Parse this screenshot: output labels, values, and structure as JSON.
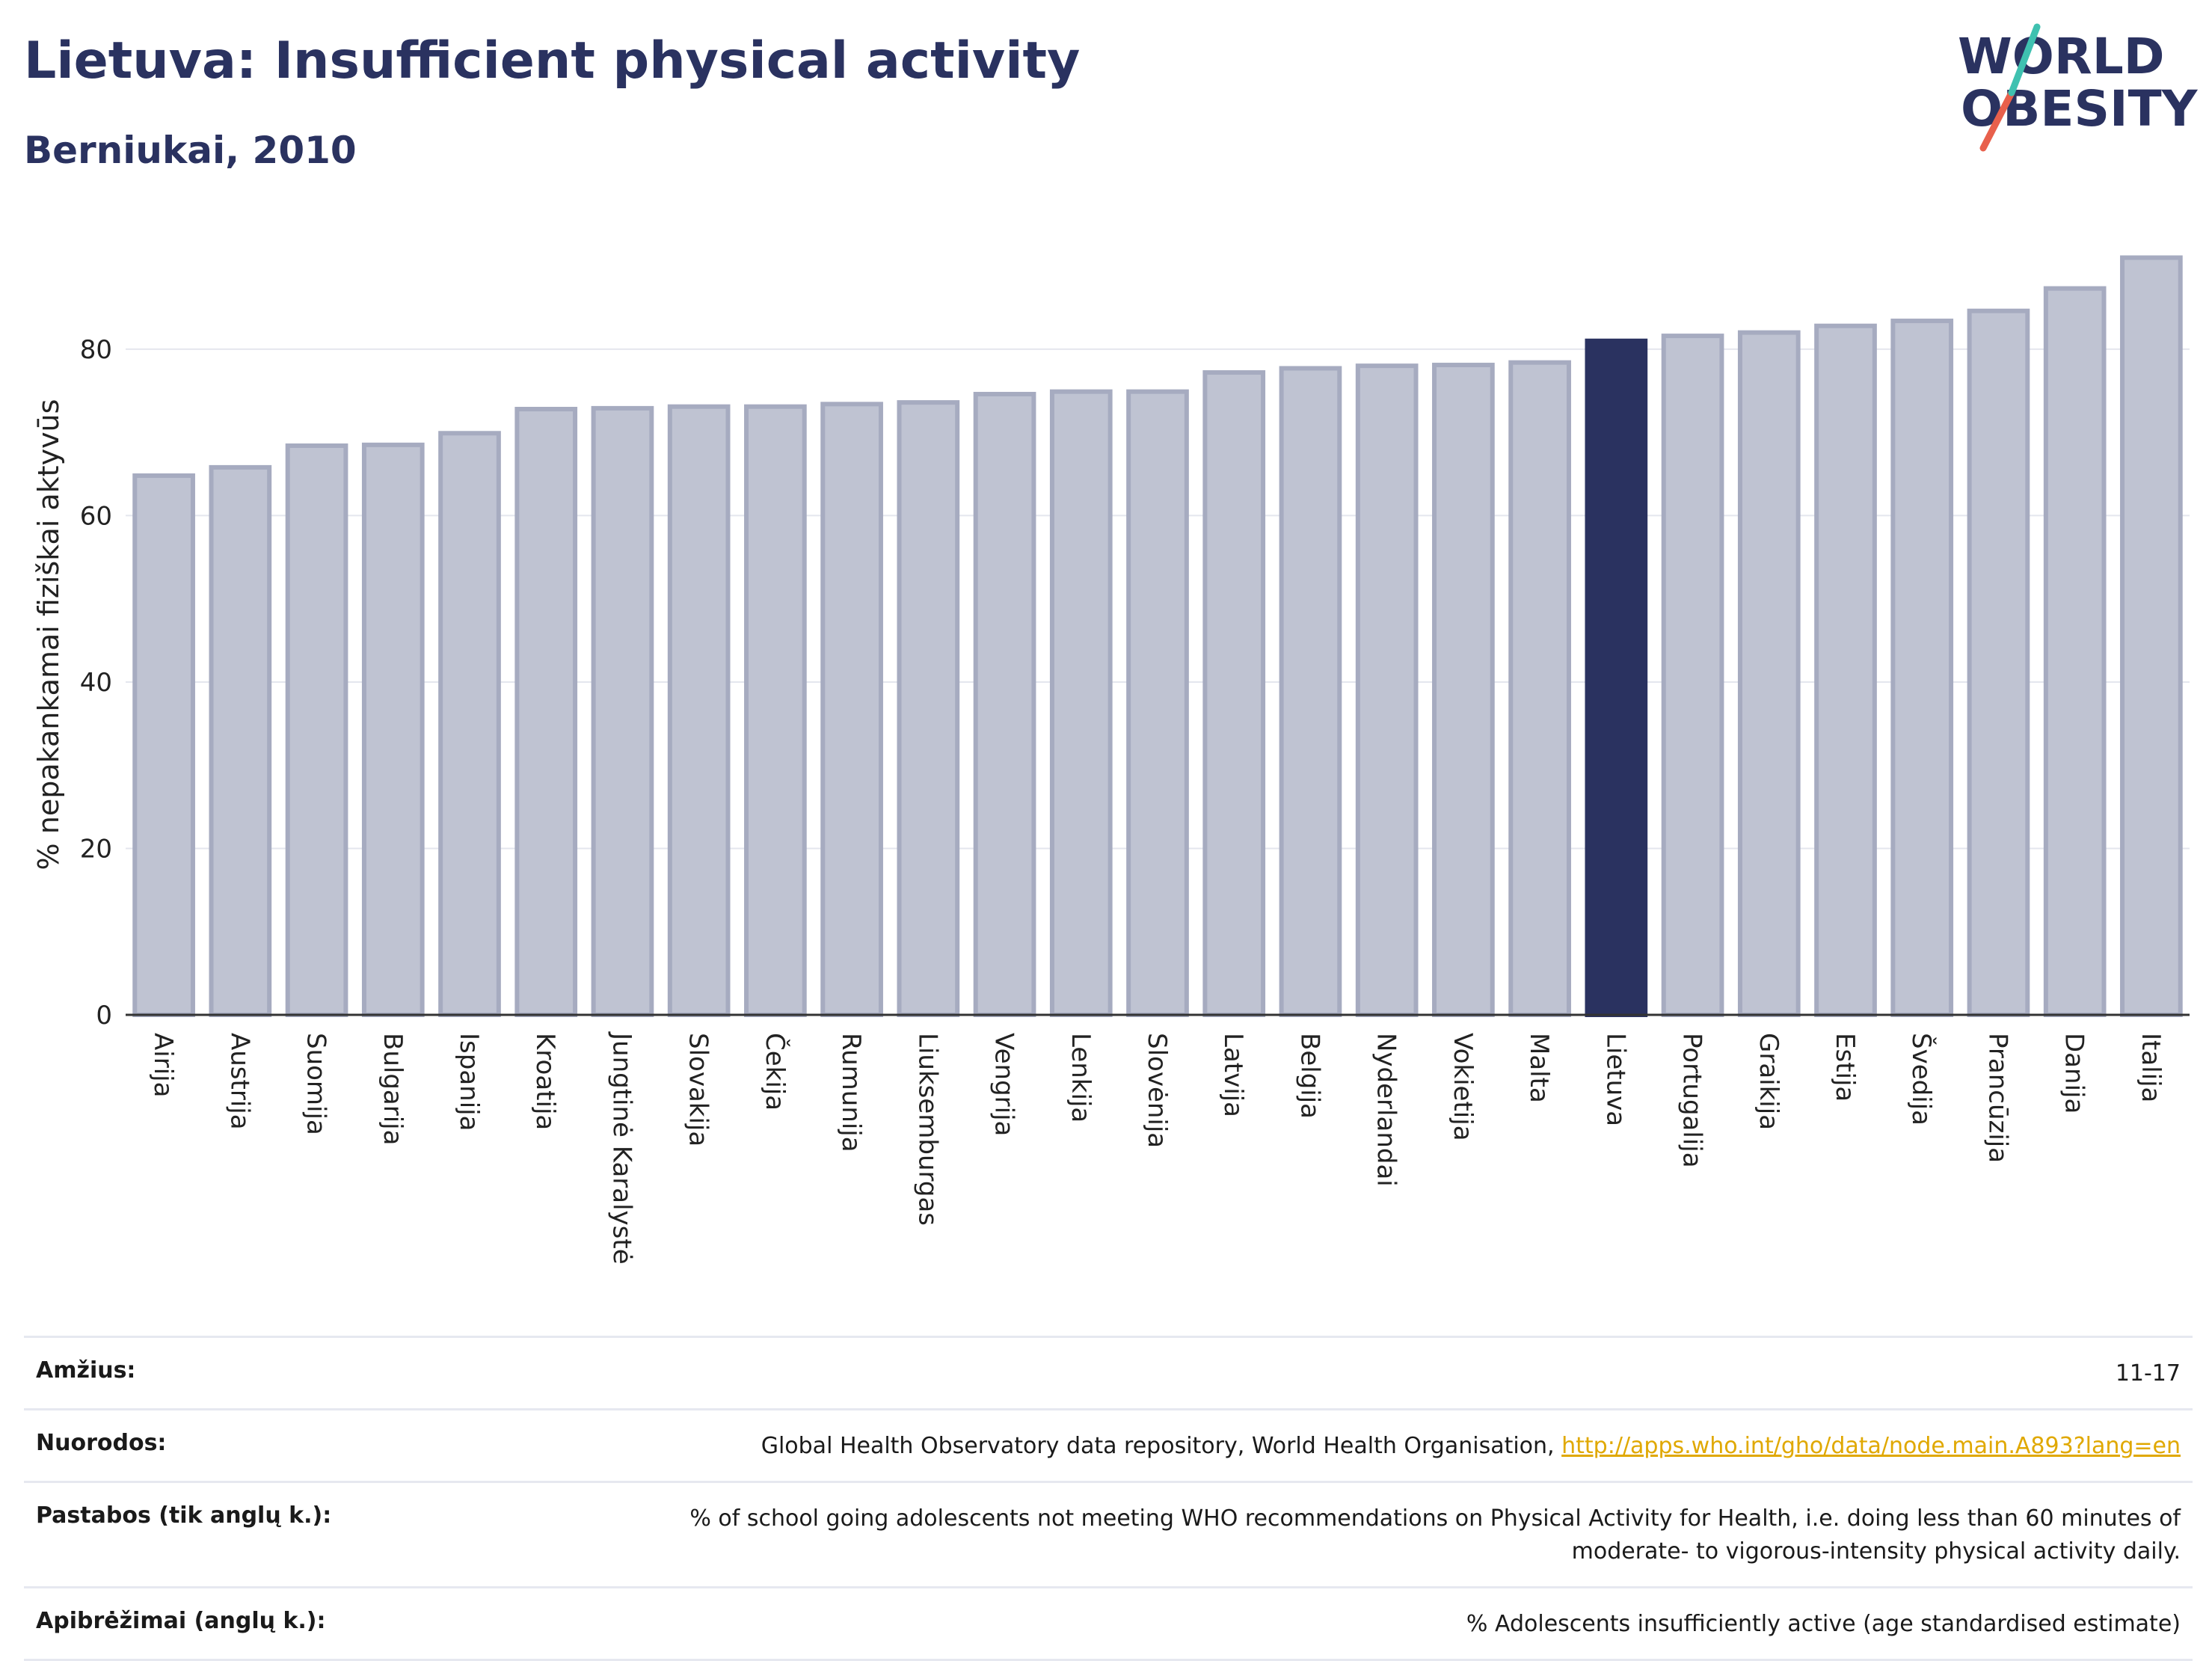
{
  "header": {
    "title": "Lietuva: Insufficient physical activity",
    "subtitle": "Berniukai, 2010"
  },
  "logo": {
    "line1": "WORLD",
    "line2": "OBESITY",
    "colors": {
      "text": "#2a3260",
      "slash_teal": "#3fc1b0",
      "slash_red": "#e8604c"
    }
  },
  "colors": {
    "bar": "#bfc3d2",
    "bar_stroke": "#a6abc0",
    "highlight": "#2a3260",
    "grid": "#e4e6ee",
    "axis": "#333333"
  },
  "chart_data": {
    "type": "bar",
    "ylabel": "% nepakankamai fiziškai aktyvūs",
    "ylim": [
      0,
      95
    ],
    "yticks": [
      0,
      20,
      40,
      60,
      80
    ],
    "grid": true,
    "highlight_category": "Lietuva",
    "categories": [
      "Airija",
      "Austrija",
      "Suomija",
      "Bulgarija",
      "Ispanija",
      "Kroatija",
      "Jungtinė Karalystė",
      "Slovakija",
      "Čekija",
      "Rumunija",
      "Liuksemburgas",
      "Vengrija",
      "Lenkija",
      "Slovėnija",
      "Latvija",
      "Belgija",
      "Nyderlandai",
      "Vokietija",
      "Malta",
      "Lietuva",
      "Portugalija",
      "Graikija",
      "Estija",
      "Švedija",
      "Prancūzija",
      "Danija",
      "Italija"
    ],
    "values": [
      64.8,
      65.8,
      68.4,
      68.5,
      69.9,
      72.8,
      72.9,
      73.1,
      73.1,
      73.4,
      73.6,
      74.6,
      74.9,
      74.9,
      77.2,
      77.7,
      78.0,
      78.1,
      78.4,
      81.0,
      81.6,
      82.0,
      82.8,
      83.4,
      84.6,
      87.3,
      91.0
    ]
  },
  "info": [
    {
      "key": "Amžius:",
      "value": "11-17"
    },
    {
      "key": "Nuorodos:",
      "value": "Global Health Observatory data repository, World Health Organisation,",
      "link": "http://apps.who.int/gho/data/node.main.A893?lang=en"
    },
    {
      "key": "Pastabos (tik anglų k.):",
      "value": "% of school going adolescents not meeting WHO recommendations on Physical Activity for Health, i.e. doing less than 60 minutes of moderate- to vigorous-intensity physical activity daily."
    },
    {
      "key": "Apibrėžimai (anglų k.):",
      "value": "% Adolescents insufficiently active (age standardised estimate)"
    }
  ]
}
